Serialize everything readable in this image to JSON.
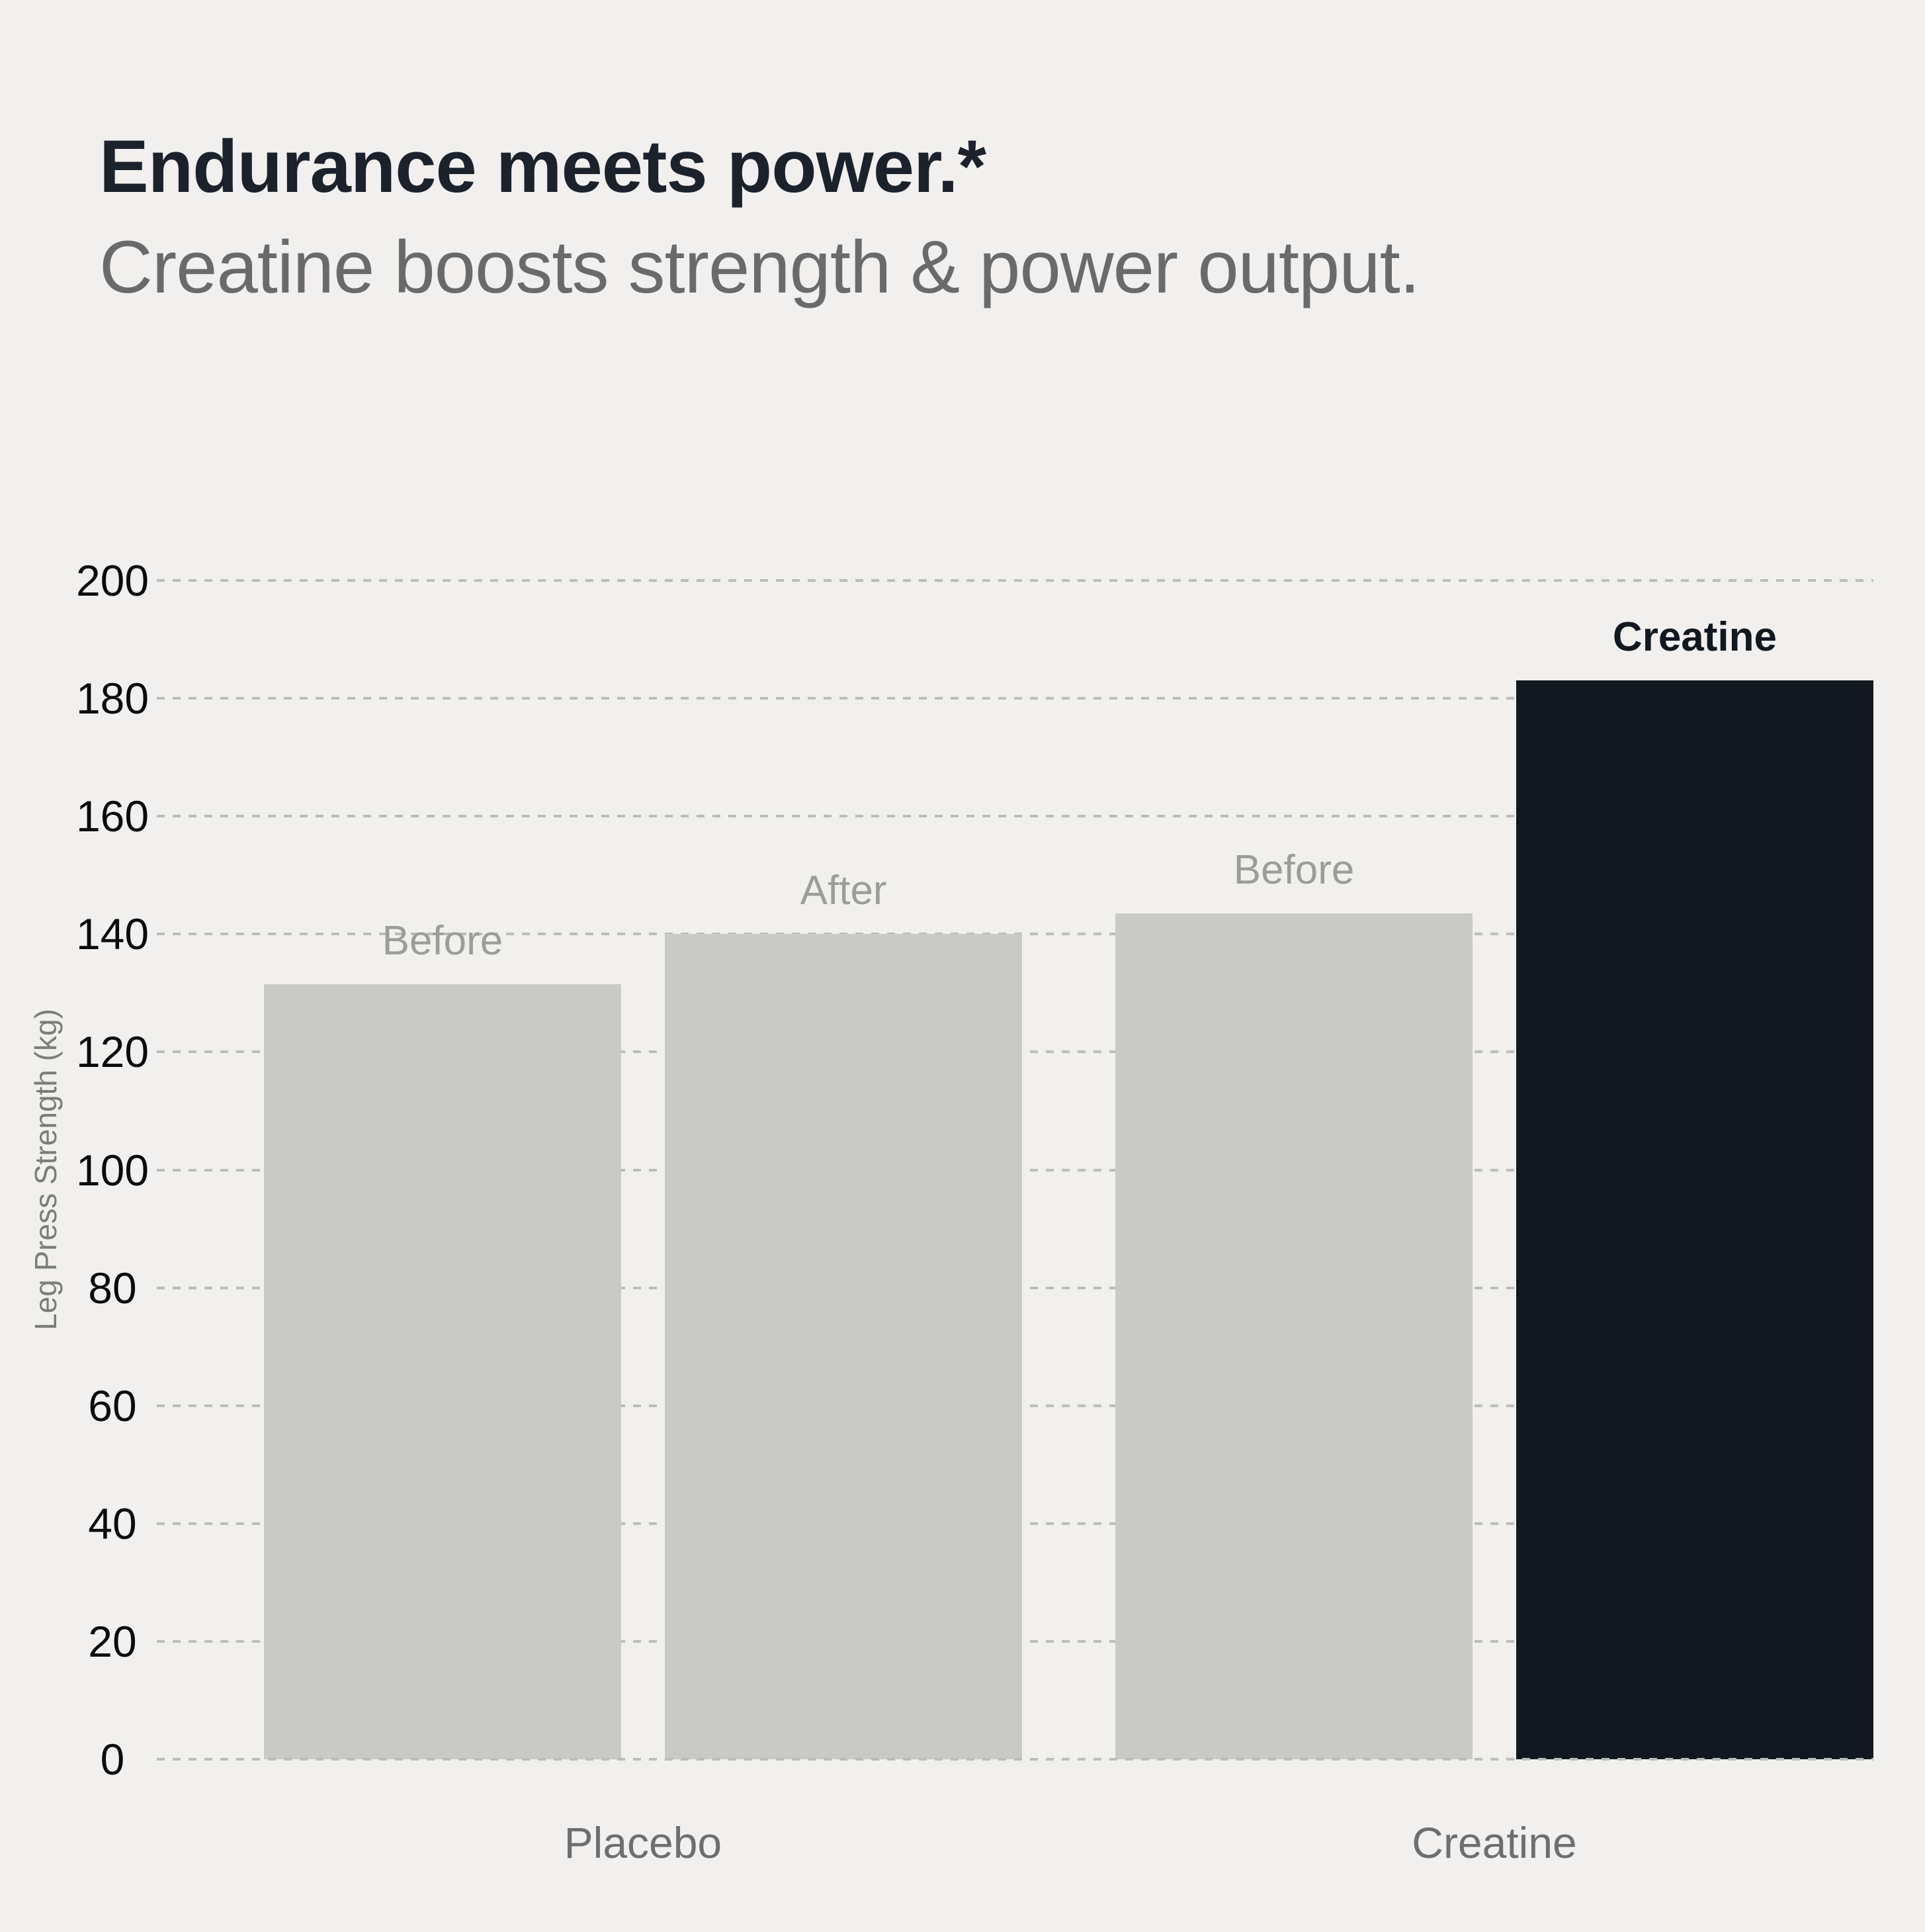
{
  "header": {
    "title": "Endurance meets power.*",
    "subtitle": "Creatine boosts strength & power output."
  },
  "chart_data": {
    "type": "bar",
    "title": "Endurance meets power.*",
    "subtitle": "Creatine boosts strength & power output.",
    "xlabel": "",
    "ylabel": "Leg Press Strength (kg)",
    "ylim": [
      0,
      200
    ],
    "yticks": [
      0,
      20,
      40,
      60,
      80,
      100,
      120,
      140,
      160,
      180,
      200
    ],
    "grid": "dashed-horizontal",
    "legend_position": "none",
    "categories": [
      "Placebo",
      "Creatine"
    ],
    "bars": [
      {
        "group": "Placebo",
        "label": "Before",
        "value": 131.5,
        "emphasis": false
      },
      {
        "group": "Placebo",
        "label": "After",
        "value": 140,
        "emphasis": false
      },
      {
        "group": "Creatine",
        "label": "Before",
        "value": 143.5,
        "emphasis": false
      },
      {
        "group": "Creatine",
        "label": "Creatine",
        "value": 183,
        "emphasis": true
      }
    ],
    "layout": {
      "bar_left_pct": [
        6.24,
        29.6,
        55.84,
        79.19
      ],
      "bar_width_pct": 20.81,
      "group_center_pct": [
        28.32,
        77.92
      ]
    }
  },
  "colors": {
    "background": "#f1f0ee",
    "bar_default": "#c9c9c7",
    "bar_emphasis": "#121820",
    "gridline": "#bcbcba",
    "title": "#1b222c",
    "subtitle": "#6a6a6a",
    "tick_label": "#0b0b0b",
    "bar_label": "#9c9c9a",
    "bar_label_emphasis": "#121820",
    "group_label": "#6e6e6e",
    "axis_title": "#7c7c7a"
  }
}
